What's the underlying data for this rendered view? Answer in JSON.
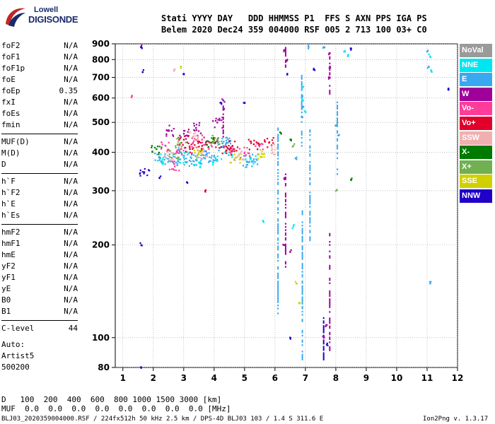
{
  "logo": {
    "top": "Lowell",
    "main": "DIGISONDE"
  },
  "header": {
    "line1": "Stati YYYY DAY   DDD HHMMSS P1  FFS S AXN PPS IGA PS",
    "line2": "Belem 2020 Dec24 359 004000 RSF 005 2 713 100 03+ C0"
  },
  "params": [
    {
      "label": "foF2",
      "value": "N/A"
    },
    {
      "label": "foF1",
      "value": "N/A"
    },
    {
      "label": "foF1p",
      "value": "N/A"
    },
    {
      "label": "foE",
      "value": "N/A"
    },
    {
      "label": "foEp",
      "value": "0.35"
    },
    {
      "label": "fxI",
      "value": "N/A"
    },
    {
      "label": "foEs",
      "value": "N/A"
    },
    {
      "label": "fmin",
      "value": "N/A"
    },
    {
      "label": "MUF(D)",
      "value": "N/A"
    },
    {
      "label": "M(D)",
      "value": "N/A"
    },
    {
      "label": "D",
      "value": "N/A"
    },
    {
      "label": "h`F",
      "value": "N/A"
    },
    {
      "label": "h`F2",
      "value": "N/A"
    },
    {
      "label": "h`E",
      "value": "N/A"
    },
    {
      "label": "h`Es",
      "value": "N/A"
    },
    {
      "label": "hmF2",
      "value": "N/A"
    },
    {
      "label": "hmF1",
      "value": "N/A"
    },
    {
      "label": "hmE",
      "value": "N/A"
    },
    {
      "label": "yF2",
      "value": "N/A"
    },
    {
      "label": "yF1",
      "value": "N/A"
    },
    {
      "label": "yE",
      "value": "N/A"
    },
    {
      "label": "B0",
      "value": "N/A"
    },
    {
      "label": "B1",
      "value": "N/A"
    },
    {
      "label": "C-level",
      "value": "44"
    }
  ],
  "auto": {
    "line1": "Auto:",
    "line2": "Artist5",
    "line3": "500200"
  },
  "legend": [
    {
      "label": "NoVal",
      "color": "#9a9a9a"
    },
    {
      "label": "NNE",
      "color": "#00e6f0"
    },
    {
      "label": "E",
      "color": "#3aa8f0"
    },
    {
      "label": "W",
      "color": "#a0009a"
    },
    {
      "label": "Vo-",
      "color": "#ff3c9a"
    },
    {
      "label": "Vo+",
      "color": "#e0002a"
    },
    {
      "label": "SSW",
      "color": "#f0b0b0"
    },
    {
      "label": "X-",
      "color": "#007a00"
    },
    {
      "label": "X+",
      "color": "#70b050"
    },
    {
      "label": "SSE",
      "color": "#d0d000"
    },
    {
      "label": "NNW",
      "color": "#2000c8"
    }
  ],
  "table": {
    "row1": "D   100  200  400  600  800 1000 1500 3000 [km]",
    "row2": "MUF  0.0  0.0  0.0  0.0  0.0  0.0  0.0  0.0 [MHz]"
  },
  "footer": {
    "left": "BLJ03_2020359004000.RSF / 224fx512h 50 kHz 2.5 km / DPS-4D BLJ03 103 / 1.4 S 311.6 E",
    "right": "Ion2Png v. 1.3.17"
  },
  "chart_data": {
    "type": "scatter",
    "x_ticks": [
      1,
      2,
      3,
      4,
      5,
      6,
      7,
      8,
      9,
      10,
      11,
      12
    ],
    "y_ticks": [
      80,
      100,
      200,
      300,
      400,
      500,
      600,
      700,
      800,
      900
    ],
    "xlim": [
      0.75,
      12
    ],
    "ylim": [
      80,
      900
    ],
    "y_scale": "log",
    "grid": true,
    "clusters": [
      {
        "series": "E",
        "points": [
          [
            2.2,
            385
          ],
          [
            2.5,
            380
          ],
          [
            2.8,
            375
          ],
          [
            3.1,
            372
          ],
          [
            3.4,
            378
          ],
          [
            3.7,
            382
          ],
          [
            4.0,
            390
          ],
          [
            4.3,
            420
          ],
          [
            4.4,
            430
          ],
          [
            3.6,
            395
          ],
          [
            2.9,
            400
          ],
          [
            5.1,
            372
          ],
          [
            5.3,
            380
          ],
          [
            6.7,
            380
          ],
          [
            6.9,
            610
          ],
          [
            6.9,
            560
          ],
          [
            6.9,
            520
          ],
          [
            8.0,
            490
          ],
          [
            8.1,
            455
          ],
          [
            11.0,
            850
          ],
          [
            11.05,
            760
          ],
          [
            11.1,
            150
          ],
          [
            7.1,
            880
          ],
          [
            7.6,
            880
          ]
        ]
      },
      {
        "series": "NNE",
        "points": [
          [
            2.3,
            380
          ],
          [
            3.0,
            385
          ],
          [
            3.5,
            370
          ],
          [
            4.1,
            375
          ],
          [
            4.5,
            400
          ],
          [
            5.2,
            380
          ],
          [
            6.9,
            650
          ],
          [
            6.9,
            590
          ],
          [
            7.0,
            540
          ],
          [
            8.3,
            850
          ],
          [
            8.4,
            830
          ],
          [
            11.1,
            820
          ],
          [
            11.15,
            730
          ],
          [
            5.6,
            240
          ],
          [
            6.6,
            230
          ]
        ]
      },
      {
        "series": "W",
        "points": [
          [
            2.6,
            470
          ],
          [
            3.0,
            460
          ],
          [
            3.4,
            480
          ],
          [
            4.3,
            550
          ],
          [
            4.3,
            590
          ],
          [
            6.3,
            860
          ],
          [
            6.4,
            800
          ],
          [
            7.8,
            840
          ],
          [
            7.8,
            760
          ],
          [
            7.8,
            700
          ],
          [
            6.3,
            200
          ],
          [
            6.5,
            190
          ],
          [
            6.3,
            330
          ],
          [
            7.7,
            110
          ],
          [
            7.6,
            100
          ],
          [
            4.1,
            500
          ],
          [
            1.6,
            880
          ]
        ]
      },
      {
        "series": "Vo-",
        "points": [
          [
            2.4,
            420
          ],
          [
            2.9,
            410
          ],
          [
            3.3,
            430
          ],
          [
            3.8,
            415
          ],
          [
            4.5,
            410
          ],
          [
            5.0,
            400
          ],
          [
            5.5,
            425
          ],
          [
            2.7,
            360
          ],
          [
            3.6,
            440
          ],
          [
            1.3,
            610
          ]
        ]
      },
      {
        "series": "Vo+",
        "points": [
          [
            3.2,
            410
          ],
          [
            3.6,
            420
          ],
          [
            4.0,
            430
          ],
          [
            4.6,
            420
          ],
          [
            5.3,
            425
          ],
          [
            5.8,
            430
          ],
          [
            3.0,
            440
          ],
          [
            4.4,
            405
          ],
          [
            3.7,
            300
          ]
        ]
      },
      {
        "series": "SSW",
        "points": [
          [
            2.5,
            390
          ],
          [
            3.6,
            395
          ],
          [
            2.7,
            745
          ],
          [
            3.3,
            450
          ],
          [
            4.8,
            390
          ],
          [
            5.9,
            410
          ]
        ]
      },
      {
        "series": "X-",
        "points": [
          [
            6.5,
            440
          ],
          [
            8.5,
            325
          ],
          [
            2.1,
            410
          ],
          [
            3.9,
            430
          ],
          [
            6.2,
            460
          ]
        ]
      },
      {
        "series": "X+",
        "points": [
          [
            2.9,
            430
          ],
          [
            4.1,
            440
          ],
          [
            6.6,
            420
          ],
          [
            8.0,
            300
          ],
          [
            2.7,
            395
          ]
        ]
      },
      {
        "series": "SSE",
        "points": [
          [
            2.9,
            760
          ],
          [
            6.7,
            150
          ],
          [
            6.8,
            130
          ],
          [
            3.5,
            400
          ],
          [
            4.7,
            385
          ],
          [
            5.6,
            395
          ]
        ]
      },
      {
        "series": "NNW",
        "points": [
          [
            1.6,
            880
          ],
          [
            1.65,
            730
          ],
          [
            1.6,
            200
          ],
          [
            1.6,
            80
          ],
          [
            1.7,
            345
          ],
          [
            8.5,
            870
          ],
          [
            11.7,
            645
          ],
          [
            3.0,
            720
          ],
          [
            2.2,
            330
          ],
          [
            3.1,
            320
          ],
          [
            5.0,
            580
          ],
          [
            6.4,
            720
          ],
          [
            7.3,
            740
          ],
          [
            4.2,
            580
          ],
          [
            7.7,
            95
          ],
          [
            6.5,
            100
          ]
        ]
      }
    ],
    "streaks": [
      {
        "series": "W",
        "x": 6.35,
        "y_from": 740,
        "y_to": 880
      },
      {
        "series": "W",
        "x": 6.35,
        "y_from": 170,
        "y_to": 345
      },
      {
        "series": "W",
        "x": 7.8,
        "y_from": 620,
        "y_to": 820
      },
      {
        "series": "W",
        "x": 7.8,
        "y_from": 90,
        "y_to": 220
      },
      {
        "series": "E",
        "x": 6.88,
        "y_from": 420,
        "y_to": 720
      },
      {
        "series": "E",
        "x": 6.9,
        "y_from": 85,
        "y_to": 260
      },
      {
        "series": "E",
        "x": 8.05,
        "y_from": 340,
        "y_to": 600
      },
      {
        "series": "E",
        "x": 6.1,
        "y_from": 120,
        "y_to": 480
      },
      {
        "series": "NNW",
        "x": 7.6,
        "y_from": 82,
        "y_to": 120
      },
      {
        "series": "W",
        "x": 4.3,
        "y_from": 450,
        "y_to": 600
      },
      {
        "series": "E",
        "x": 7.15,
        "y_from": 200,
        "y_to": 480
      }
    ]
  }
}
